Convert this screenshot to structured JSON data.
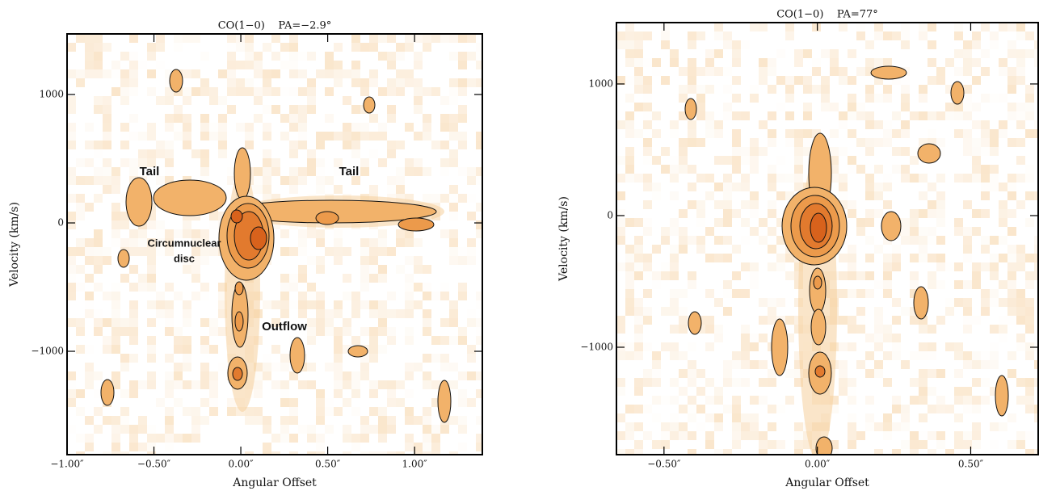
{
  "chart_data": [
    {
      "type": "pv-diagram",
      "title": "CO(1−0)    PA=−2.9°",
      "xlabel": "Angular Offset",
      "ylabel": "Velocity (km/s)",
      "xlim": [
        -1.0,
        1.39
      ],
      "ylim": [
        -1805,
        1472
      ],
      "xticks": [
        {
          "value": -1.0,
          "label": "−1.00″"
        },
        {
          "value": -0.5,
          "label": "−0.50″"
        },
        {
          "value": 0,
          "label": "0.00″"
        },
        {
          "value": 0.5,
          "label": "0.50″"
        },
        {
          "value": 1.0,
          "label": "1.00″"
        }
      ],
      "yticks": [
        {
          "value": -1000,
          "label": "−1000"
        },
        0,
        1000
      ],
      "annotations": [
        "Tail",
        "Tail",
        "Circumnuclear",
        "disc",
        "Outflow"
      ]
    },
    {
      "type": "pv-diagram",
      "title": "CO(1−0)    PA=77°",
      "xlabel": "Angular Offset",
      "ylabel": "Velocity (km/s)",
      "xlim": [
        -0.655,
        0.72
      ],
      "ylim": [
        -1816,
        1466
      ],
      "xticks": [
        {
          "value": -0.5,
          "label": "−0.50″"
        },
        {
          "value": 0,
          "label": "0.00″"
        },
        {
          "value": 0.5,
          "label": "0.50″"
        }
      ],
      "yticks": [
        {
          "value": -1000,
          "label": "−1000"
        },
        0,
        1000
      ],
      "annotations": []
    }
  ]
}
